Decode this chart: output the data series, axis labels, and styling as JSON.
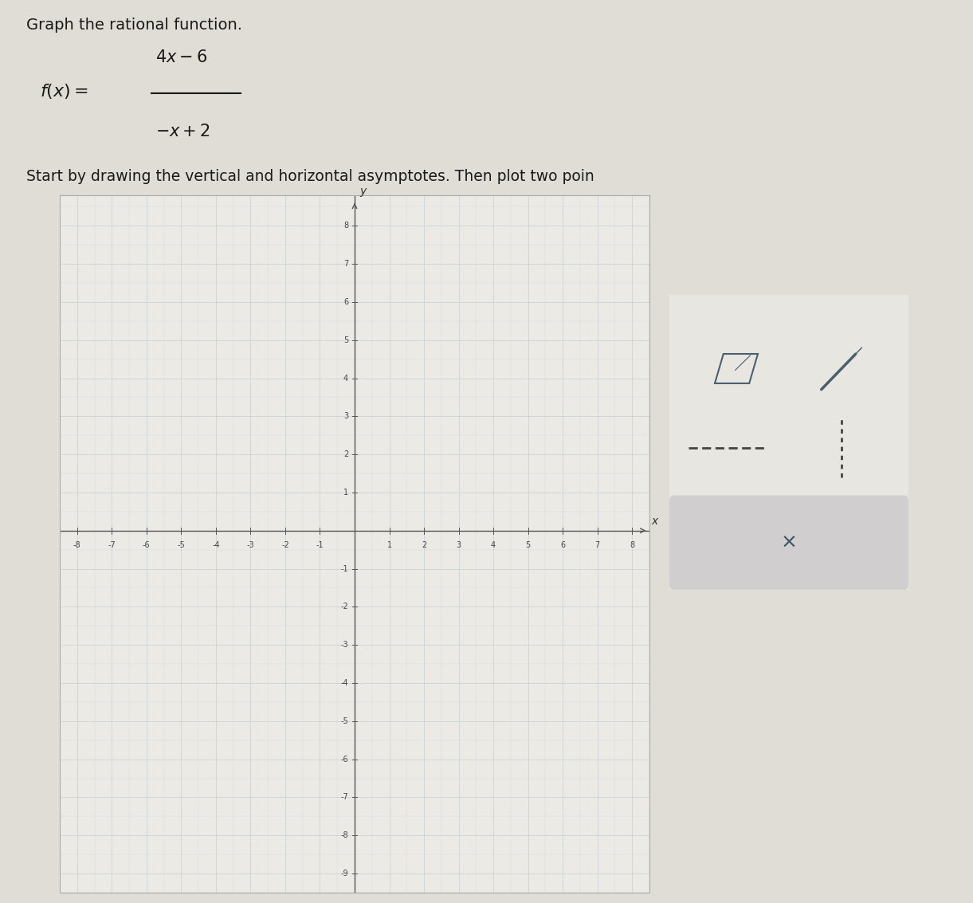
{
  "title_line1": "Graph the rational function.",
  "instruction": "Start by drawing the vertical and horizontal asymptotes. Then plot two poin",
  "xlim": [
    -8.5,
    8.5
  ],
  "ylim": [
    -9.5,
    8.8
  ],
  "xtick_labels": [
    "-8",
    "-7",
    "-6",
    "-5",
    "-4",
    "-3",
    "-2",
    "-1",
    "1",
    "2",
    "3",
    "4",
    "5",
    "6",
    "7",
    "8"
  ],
  "xtick_vals": [
    -8,
    -7,
    -6,
    -5,
    -4,
    -3,
    -2,
    -1,
    1,
    2,
    3,
    4,
    5,
    6,
    7,
    8
  ],
  "ytick_labels": [
    "8",
    "7",
    "6",
    "5",
    "4",
    "3",
    "2",
    "1",
    "-1",
    "-2",
    "-3",
    "-4",
    "-5",
    "-6",
    "-7",
    "-8",
    "-9"
  ],
  "ytick_vals": [
    8,
    7,
    6,
    5,
    4,
    3,
    2,
    1,
    -1,
    -2,
    -3,
    -4,
    -5,
    -6,
    -7,
    -8,
    -9
  ],
  "grid_color": "#c5cfd8",
  "axis_color": "#666666",
  "plot_bg": "#eceae5",
  "outer_bg": "#e0dcd6",
  "panel_bg": "#e8e6e0",
  "panel_border": "#b8b8b8",
  "tick_fontsize": 7,
  "title_fontsize": 14,
  "formula_fontsize": 15,
  "text_color": "#222222",
  "axis_line_color": "#555555"
}
